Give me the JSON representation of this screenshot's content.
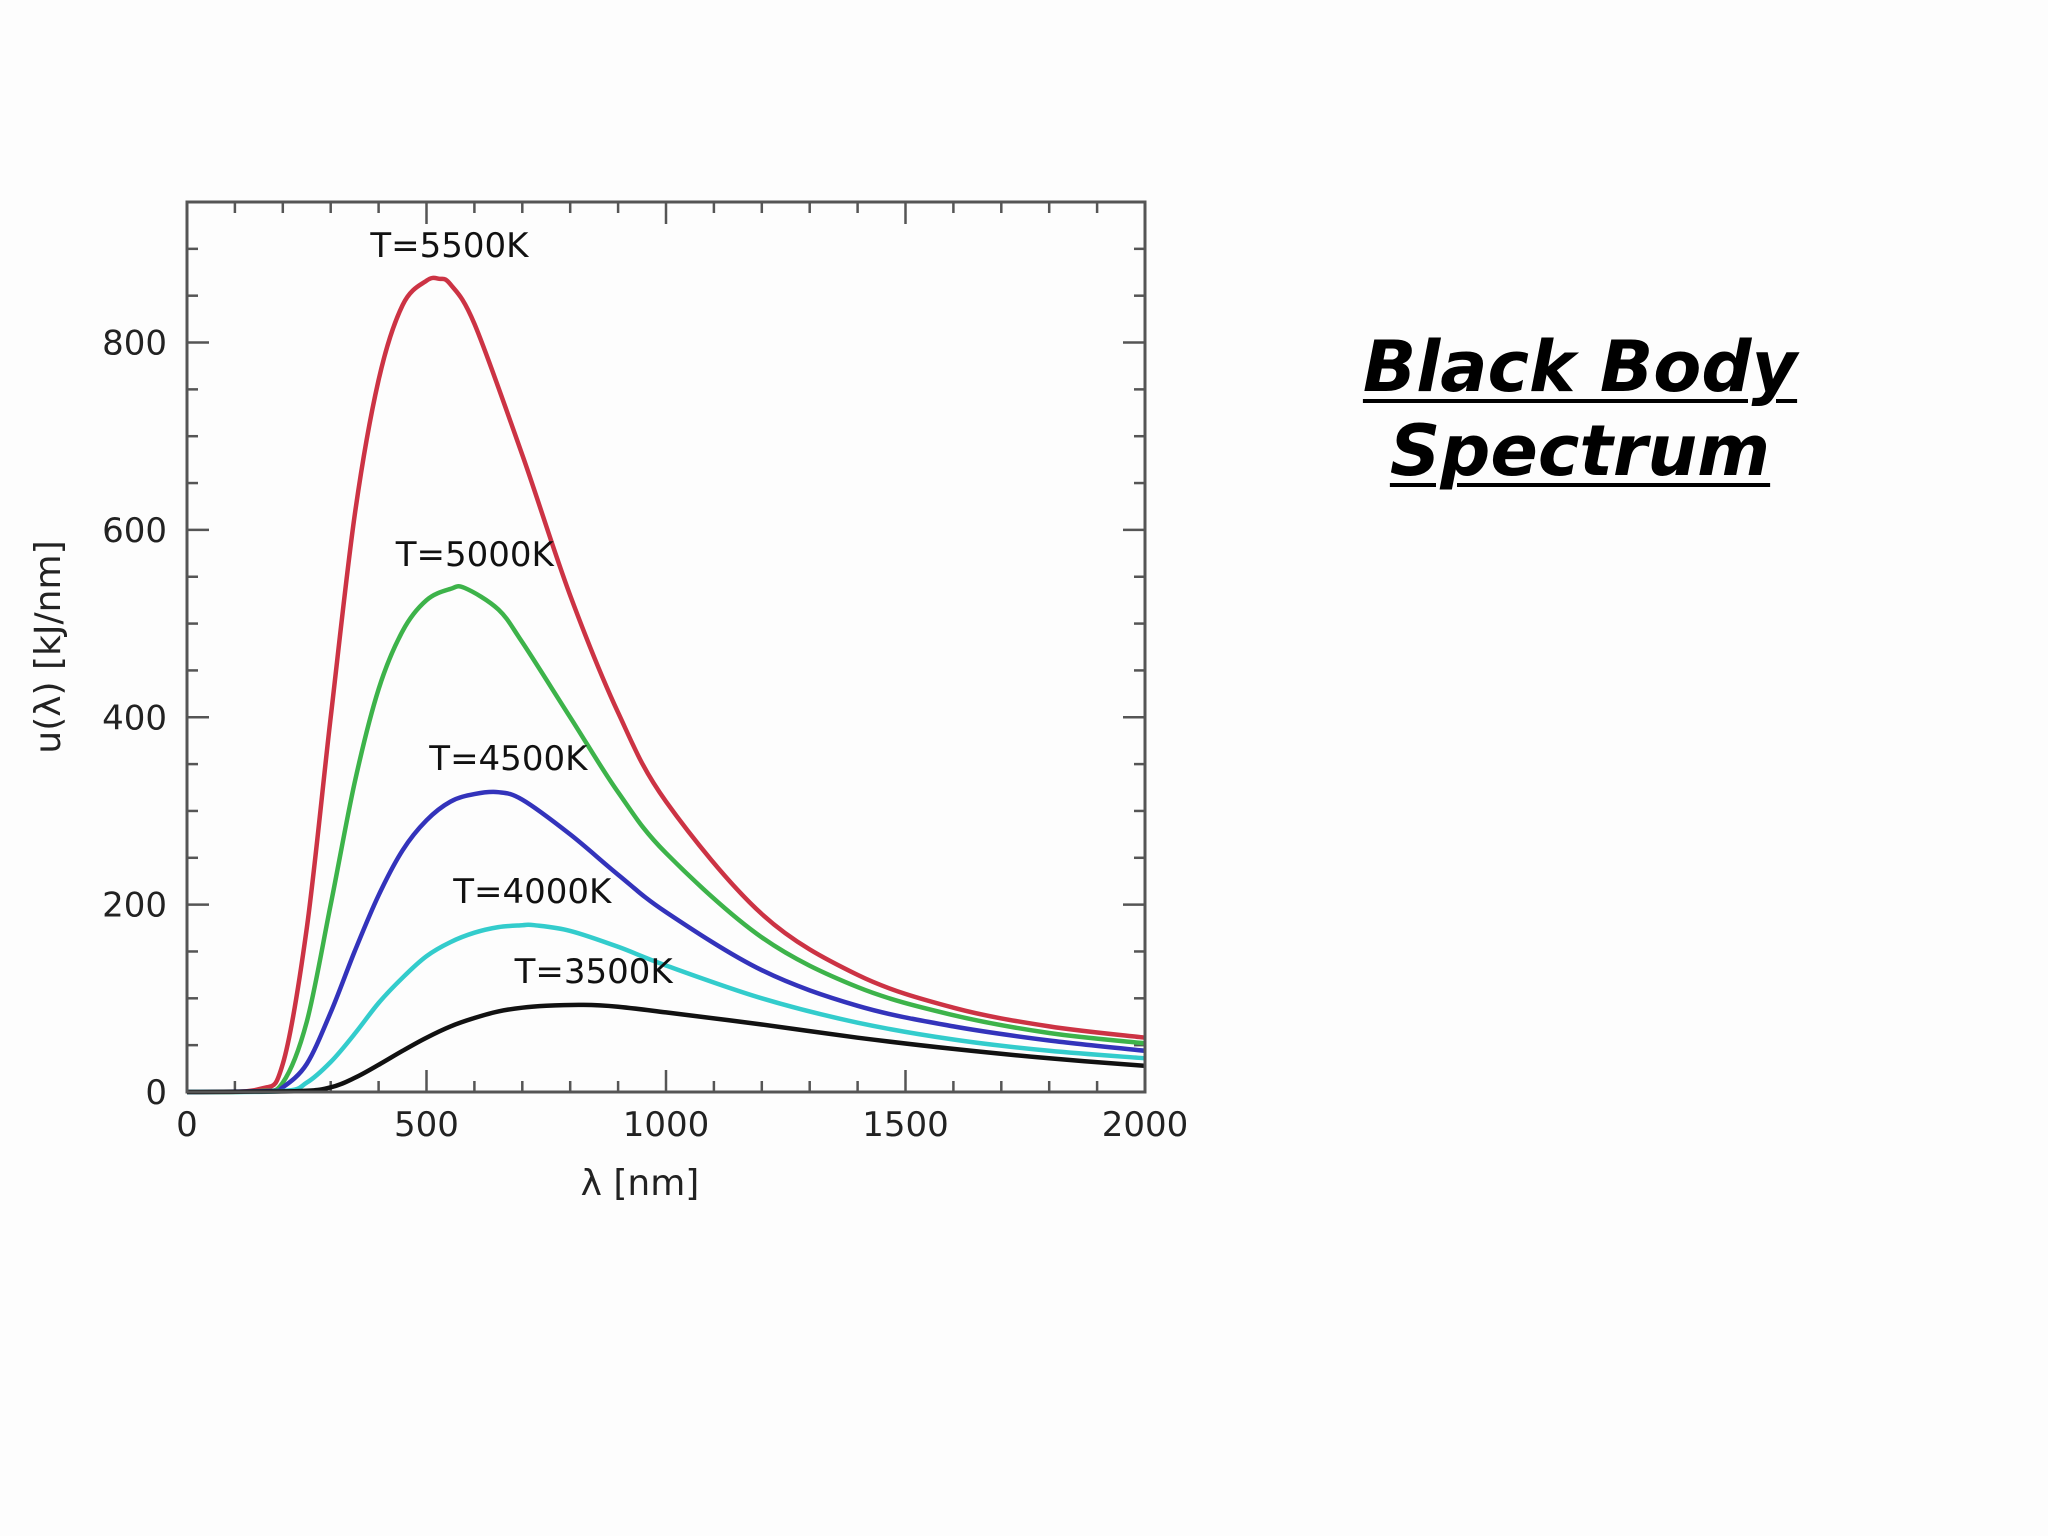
{
  "slide": {
    "title_line1": "Black Body",
    "title_line2": "Spectrum"
  },
  "chart_data": {
    "type": "line",
    "xlabel": "λ [nm]",
    "ylabel": "u(λ) [kJ/nm]",
    "xlim": [
      0,
      2000
    ],
    "ylim": [
      0,
      950
    ],
    "xticks": [
      0,
      500,
      1000,
      1500,
      2000
    ],
    "yticks": [
      0,
      200,
      400,
      600,
      800
    ],
    "grid": false,
    "series": [
      {
        "name": "T=5500K",
        "color": "#cc3344",
        "x": [
          0,
          150,
          200,
          250,
          300,
          350,
          400,
          450,
          500,
          527,
          550,
          600,
          700,
          800,
          900,
          1000,
          1200,
          1400,
          1600,
          1800,
          2000
        ],
        "y": [
          0,
          3,
          30,
          175,
          400,
          615,
          760,
          840,
          866,
          868,
          862,
          820,
          680,
          530,
          405,
          310,
          190,
          125,
          90,
          70,
          58
        ]
      },
      {
        "name": "T=5000K",
        "color": "#3db34a",
        "x": [
          0,
          150,
          200,
          250,
          300,
          350,
          400,
          450,
          500,
          550,
          580,
          650,
          700,
          800,
          900,
          1000,
          1200,
          1400,
          1600,
          1800,
          2000
        ],
        "y": [
          0,
          1,
          10,
          75,
          200,
          330,
          430,
          492,
          525,
          537,
          538,
          515,
          480,
          400,
          320,
          255,
          165,
          112,
          82,
          63,
          52
        ]
      },
      {
        "name": "T=4500K",
        "color": "#3333bb",
        "x": [
          0,
          170,
          200,
          250,
          300,
          350,
          400,
          450,
          500,
          550,
          600,
          650,
          700,
          800,
          900,
          1000,
          1200,
          1400,
          1600,
          1800,
          2000
        ],
        "y": [
          0,
          1,
          5,
          30,
          85,
          150,
          210,
          258,
          290,
          310,
          318,
          320,
          312,
          275,
          232,
          192,
          130,
          92,
          70,
          55,
          44
        ]
      },
      {
        "name": "T=4000K",
        "color": "#33cccc",
        "x": [
          0,
          200,
          250,
          300,
          350,
          400,
          450,
          500,
          550,
          600,
          650,
          700,
          725,
          800,
          900,
          1000,
          1200,
          1400,
          1600,
          1800,
          2000
        ],
        "y": [
          0,
          1,
          10,
          32,
          62,
          95,
          122,
          145,
          160,
          170,
          176,
          178,
          178,
          172,
          155,
          135,
          100,
          74,
          56,
          44,
          36
        ]
      },
      {
        "name": "T=3500K",
        "color": "#111111",
        "x": [
          0,
          230,
          300,
          350,
          400,
          450,
          500,
          550,
          600,
          650,
          700,
          750,
          828,
          900,
          1000,
          1200,
          1400,
          1600,
          1800,
          2000
        ],
        "y": [
          0,
          1,
          5,
          15,
          29,
          44,
          58,
          70,
          79,
          86,
          90,
          92,
          93,
          91,
          85,
          72,
          58,
          46,
          36,
          28
        ]
      }
    ]
  }
}
